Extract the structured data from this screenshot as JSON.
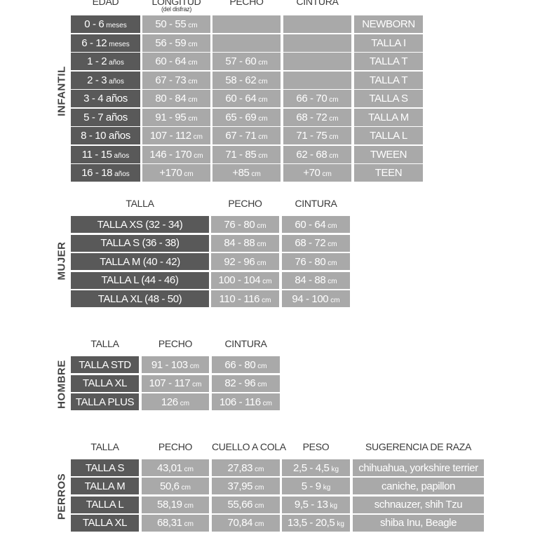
{
  "sections": [
    {
      "label": "INFANTIL",
      "headers": [
        [
          "EDAD"
        ],
        [
          "LONGITUD",
          "(del disfraz)"
        ],
        [
          "PECHO"
        ],
        [
          "CINTURA"
        ],
        null
      ],
      "rows": [
        [
          [
            "0 - 6",
            "meses"
          ],
          [
            "50 - 55",
            "cm"
          ],
          null,
          null,
          [
            "NEWBORN"
          ]
        ],
        [
          [
            "6 - 12",
            "meses"
          ],
          [
            "56 - 59",
            "cm"
          ],
          null,
          null,
          [
            "TALLA I"
          ]
        ],
        [
          [
            "1 - 2",
            "años"
          ],
          [
            "60 - 64",
            "cm"
          ],
          [
            "57 - 60",
            "cm"
          ],
          null,
          [
            "TALLA T"
          ]
        ],
        [
          [
            "2 - 3",
            "años"
          ],
          [
            "67 - 73",
            "cm"
          ],
          [
            "58 - 62",
            "cm"
          ],
          null,
          [
            "TALLA T"
          ]
        ],
        [
          [
            "3 - 4 años"
          ],
          [
            "80 - 84",
            "cm"
          ],
          [
            "60 - 64",
            "cm"
          ],
          [
            "66 - 70",
            "cm"
          ],
          [
            "TALLA S"
          ]
        ],
        [
          [
            "5 - 7 años"
          ],
          [
            "91 - 95",
            "cm"
          ],
          [
            "65 - 69",
            "cm"
          ],
          [
            "68 - 72",
            "cm"
          ],
          [
            "TALLA M"
          ]
        ],
        [
          [
            "8 - 10 años"
          ],
          [
            "107 - 112",
            "cm"
          ],
          [
            "67 - 71",
            "cm"
          ],
          [
            "71 - 75",
            "cm"
          ],
          [
            "TALLA L"
          ]
        ],
        [
          [
            "11 - 15",
            "años"
          ],
          [
            "146 - 170",
            "cm"
          ],
          [
            "71 - 85",
            "cm"
          ],
          [
            "62 - 68",
            "cm"
          ],
          [
            "TWEEN"
          ]
        ],
        [
          [
            "16 - 18",
            "años"
          ],
          [
            "+170",
            "cm"
          ],
          [
            "+85",
            "cm"
          ],
          [
            "+70",
            "cm"
          ],
          [
            "TEEN"
          ]
        ]
      ]
    },
    {
      "label": "MUJER",
      "headers": [
        [
          "TALLA"
        ],
        [
          "PECHO"
        ],
        [
          "CINTURA"
        ]
      ],
      "rows": [
        [
          [
            "TALLA XS (32 - 34)"
          ],
          [
            "76 - 80",
            "cm"
          ],
          [
            "60 - 64",
            "cm"
          ]
        ],
        [
          [
            "TALLA S (36 - 38)"
          ],
          [
            "84 - 88",
            "cm"
          ],
          [
            "68 - 72",
            "cm"
          ]
        ],
        [
          [
            "TALLA M (40 - 42)"
          ],
          [
            "92 - 96",
            "cm"
          ],
          [
            "76 - 80",
            "cm"
          ]
        ],
        [
          [
            "TALLA L (44 - 46)"
          ],
          [
            "100 - 104",
            "cm"
          ],
          [
            "84 - 88",
            "cm"
          ]
        ],
        [
          [
            "TALLA XL (48 - 50)"
          ],
          [
            "110 - 116",
            "cm"
          ],
          [
            "94 - 100",
            "cm"
          ]
        ]
      ]
    },
    {
      "label": "HOMBRE",
      "headers": [
        [
          "TALLA"
        ],
        [
          "PECHO"
        ],
        [
          "CINTURA"
        ]
      ],
      "rows": [
        [
          [
            "TALLA STD"
          ],
          [
            "91 - 103",
            "cm"
          ],
          [
            "66 - 80",
            "cm"
          ]
        ],
        [
          [
            "TALLA XL"
          ],
          [
            "107 - 117",
            "cm"
          ],
          [
            "82 - 96",
            "cm"
          ]
        ],
        [
          [
            "TALLA PLUS"
          ],
          [
            "126",
            "cm"
          ],
          [
            "106 - 116",
            "cm"
          ]
        ]
      ]
    },
    {
      "label": "PERROS",
      "headers": [
        [
          "TALLA"
        ],
        [
          "PECHO"
        ],
        [
          "CUELLO A COLA"
        ],
        [
          "PESO"
        ],
        [
          "SUGERENCIA DE RAZA"
        ]
      ],
      "rows": [
        [
          [
            "TALLA S"
          ],
          [
            "43,01",
            "cm"
          ],
          [
            "27,83",
            "cm"
          ],
          [
            "2,5 - 4,5",
            "kg"
          ],
          [
            "chihuahua, yorkshire terrier"
          ]
        ],
        [
          [
            "TALLA M"
          ],
          [
            "50,6",
            "cm"
          ],
          [
            "37,95",
            "cm"
          ],
          [
            "5 - 9",
            "kg"
          ],
          [
            "caniche, papillon"
          ]
        ],
        [
          [
            "TALLA L"
          ],
          [
            "58,19",
            "cm"
          ],
          [
            "55,66",
            "cm"
          ],
          [
            "9,5 - 13",
            "kg"
          ],
          [
            "schnauzer, shih Tzu"
          ]
        ],
        [
          [
            "TALLA XL"
          ],
          [
            "68,31",
            "cm"
          ],
          [
            "70,84",
            "cm"
          ],
          [
            "13,5 - 20,5",
            "kg"
          ],
          [
            "shiba Inu, Beagle"
          ]
        ]
      ]
    }
  ]
}
